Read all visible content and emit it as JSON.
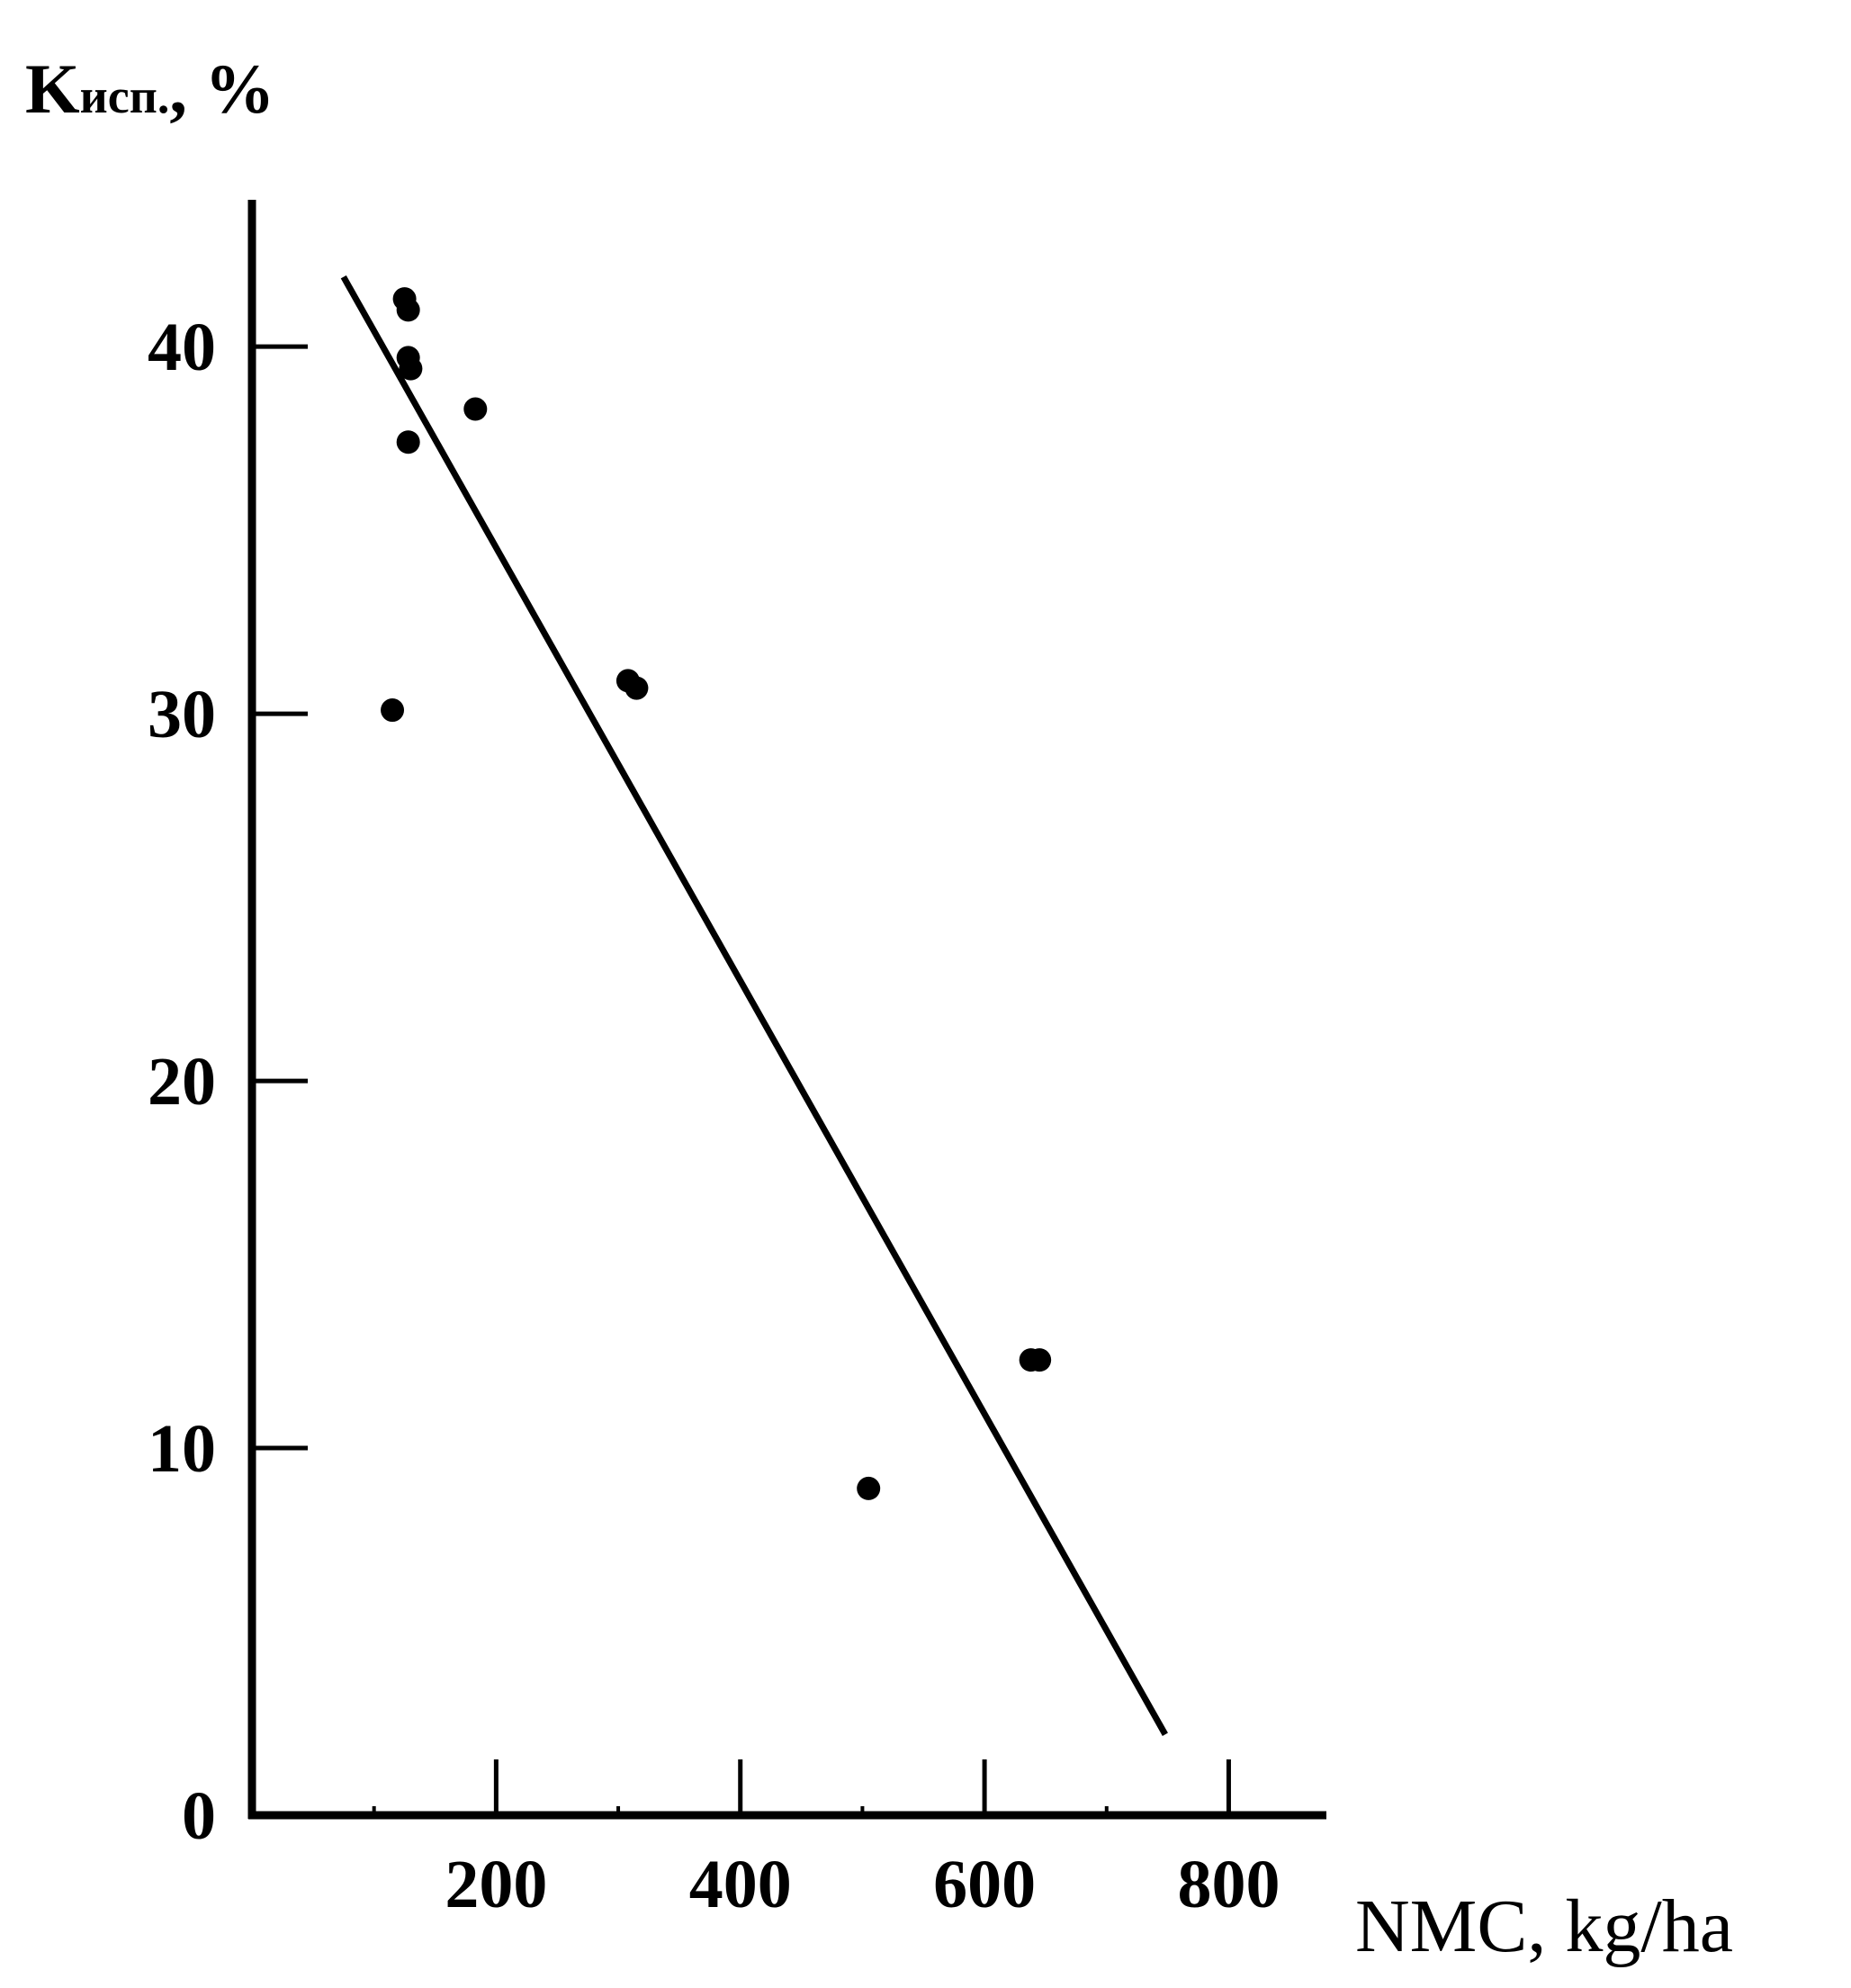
{
  "chart_data": {
    "type": "scatter",
    "ylabel": {
      "main": "K",
      "sub": "исп.",
      "unit": ", %"
    },
    "xlabel": "NMC, kg/ha",
    "xlim": [
      0,
      880
    ],
    "ylim": [
      0,
      44
    ],
    "x_ticks": [
      200,
      400,
      600,
      800
    ],
    "x_minor_ticks": [
      100,
      300,
      500,
      700
    ],
    "y_ticks": [
      0,
      10,
      20,
      30,
      40
    ],
    "grid": false,
    "legend": "none",
    "colors": {
      "ink": "#000000",
      "background": "#ffffff"
    },
    "points": [
      {
        "x": 115,
        "y": 30.1
      },
      {
        "x": 125,
        "y": 41.3
      },
      {
        "x": 128,
        "y": 41.0
      },
      {
        "x": 128,
        "y": 39.7
      },
      {
        "x": 130,
        "y": 39.4
      },
      {
        "x": 128,
        "y": 37.4
      },
      {
        "x": 183,
        "y": 38.3
      },
      {
        "x": 308,
        "y": 30.9
      },
      {
        "x": 315,
        "y": 30.7
      },
      {
        "x": 505,
        "y": 8.9
      },
      {
        "x": 638,
        "y": 12.4
      },
      {
        "x": 645,
        "y": 12.4
      }
    ],
    "trend_line": {
      "x1": 75,
      "y1": 41.9,
      "x2": 748,
      "y2": 2.2
    }
  }
}
